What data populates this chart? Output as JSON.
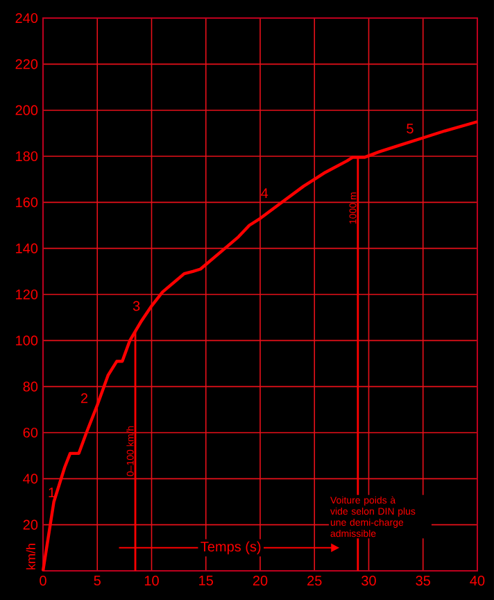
{
  "chart_data": {
    "type": "line",
    "xlabel": "Temps (s)",
    "ylabel": "km/h",
    "xlim": [
      0,
      40
    ],
    "ylim": [
      0,
      240
    ],
    "xticks": [
      0,
      5,
      10,
      15,
      20,
      25,
      30,
      35,
      40
    ],
    "yticks": [
      20,
      40,
      60,
      80,
      100,
      120,
      140,
      160,
      180,
      200,
      220,
      240
    ],
    "grid": true,
    "series": [
      {
        "color": "#ff0000",
        "x": [
          0,
          1,
          2,
          2.5,
          3.3,
          4,
          5,
          6,
          6.8,
          7.3,
          8,
          9,
          10,
          11,
          12,
          13,
          13.8,
          14.5,
          16,
          18,
          19,
          20,
          22,
          24,
          26,
          28,
          28.5,
          29.6,
          31,
          33,
          35,
          37,
          40
        ],
        "values": [
          0,
          30,
          45,
          51,
          51,
          60,
          72,
          85,
          91,
          91,
          100,
          108,
          115,
          121,
          125,
          129,
          130,
          131,
          137,
          145,
          150,
          153,
          160,
          167,
          173,
          178,
          179.5,
          179.5,
          182,
          185,
          188,
          191,
          195
        ]
      }
    ],
    "ref_lines": [
      {
        "axis": "x",
        "value": 8.5,
        "label": "0–100 km/h",
        "color": "#ff0000"
      },
      {
        "axis": "x",
        "value": 29,
        "label": "1000 m",
        "color": "#ff0000"
      }
    ],
    "annotations": [
      "1",
      "2",
      "3",
      "4",
      "5",
      "Voiture poids à vide selon DIN plus une demi-charge admissible"
    ]
  }
}
